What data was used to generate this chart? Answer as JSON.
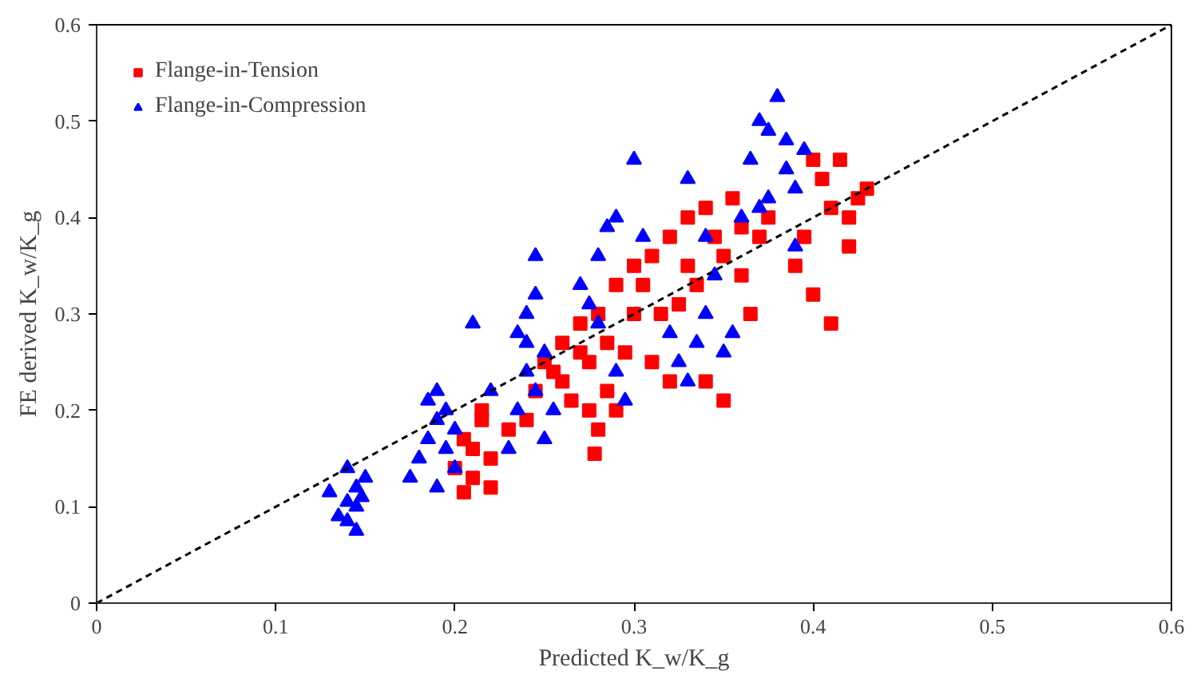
{
  "chart_data": {
    "type": "scatter",
    "xlabel": "Predicted K_w/K_g",
    "ylabel": "FE derived K_w/K_g",
    "xlim": [
      0,
      0.6
    ],
    "ylim": [
      0,
      0.6
    ],
    "xticks": [
      0,
      0.1,
      0.2,
      0.3,
      0.4,
      0.5,
      0.6
    ],
    "yticks": [
      0,
      0.1,
      0.2,
      0.3,
      0.4,
      0.5,
      0.6
    ],
    "grid": false,
    "legend": "top left",
    "series": [
      {
        "name": "Flange-in-Tension",
        "color": "#ff0000",
        "marker": "square",
        "x": [
          0.205,
          0.21,
          0.21,
          0.215,
          0.205,
          0.22,
          0.22,
          0.215,
          0.2,
          0.23,
          0.24,
          0.245,
          0.25,
          0.255,
          0.26,
          0.26,
          0.265,
          0.27,
          0.27,
          0.275,
          0.275,
          0.278,
          0.28,
          0.28,
          0.285,
          0.285,
          0.29,
          0.29,
          0.295,
          0.3,
          0.3,
          0.305,
          0.31,
          0.31,
          0.315,
          0.32,
          0.32,
          0.325,
          0.33,
          0.33,
          0.335,
          0.34,
          0.34,
          0.345,
          0.35,
          0.35,
          0.355,
          0.36,
          0.36,
          0.365,
          0.37,
          0.375,
          0.39,
          0.4,
          0.41,
          0.405,
          0.41,
          0.415,
          0.42,
          0.425,
          0.42,
          0.43,
          0.4,
          0.395
        ],
        "values": [
          0.115,
          0.13,
          0.16,
          0.19,
          0.17,
          0.12,
          0.15,
          0.2,
          0.14,
          0.18,
          0.19,
          0.22,
          0.25,
          0.24,
          0.23,
          0.27,
          0.21,
          0.26,
          0.29,
          0.25,
          0.2,
          0.155,
          0.18,
          0.3,
          0.22,
          0.27,
          0.33,
          0.2,
          0.26,
          0.3,
          0.35,
          0.33,
          0.36,
          0.25,
          0.3,
          0.38,
          0.23,
          0.31,
          0.4,
          0.35,
          0.33,
          0.41,
          0.23,
          0.38,
          0.21,
          0.36,
          0.42,
          0.34,
          0.39,
          0.3,
          0.38,
          0.4,
          0.35,
          0.32,
          0.29,
          0.44,
          0.41,
          0.46,
          0.4,
          0.42,
          0.37,
          0.43,
          0.46,
          0.38
        ]
      },
      {
        "name": "Flange-in-Compression",
        "color": "#0000ff",
        "marker": "triangle",
        "x": [
          0.135,
          0.14,
          0.14,
          0.145,
          0.145,
          0.145,
          0.148,
          0.14,
          0.13,
          0.15,
          0.18,
          0.185,
          0.19,
          0.19,
          0.19,
          0.195,
          0.195,
          0.2,
          0.2,
          0.185,
          0.175,
          0.21,
          0.22,
          0.23,
          0.235,
          0.24,
          0.24,
          0.24,
          0.245,
          0.245,
          0.25,
          0.25,
          0.255,
          0.235,
          0.245,
          0.27,
          0.275,
          0.28,
          0.285,
          0.29,
          0.29,
          0.295,
          0.3,
          0.28,
          0.305,
          0.32,
          0.325,
          0.33,
          0.335,
          0.34,
          0.345,
          0.35,
          0.355,
          0.33,
          0.34,
          0.36,
          0.365,
          0.37,
          0.375,
          0.38,
          0.385,
          0.385,
          0.39,
          0.375,
          0.39,
          0.37,
          0.395
        ],
        "values": [
          0.09,
          0.085,
          0.14,
          0.075,
          0.1,
          0.12,
          0.11,
          0.105,
          0.115,
          0.13,
          0.15,
          0.17,
          0.12,
          0.19,
          0.22,
          0.16,
          0.2,
          0.18,
          0.14,
          0.21,
          0.13,
          0.29,
          0.22,
          0.16,
          0.2,
          0.24,
          0.27,
          0.3,
          0.22,
          0.36,
          0.26,
          0.17,
          0.2,
          0.28,
          0.32,
          0.33,
          0.31,
          0.36,
          0.39,
          0.4,
          0.24,
          0.21,
          0.46,
          0.29,
          0.38,
          0.28,
          0.25,
          0.23,
          0.27,
          0.3,
          0.34,
          0.26,
          0.28,
          0.44,
          0.38,
          0.4,
          0.46,
          0.5,
          0.49,
          0.525,
          0.48,
          0.45,
          0.43,
          0.42,
          0.37,
          0.41,
          0.47
        ]
      },
      {
        "type": "line",
        "color": "#000000",
        "line_style": "dashed",
        "marker": "none",
        "x": [
          0,
          0.6
        ],
        "values": [
          0,
          0.6
        ]
      }
    ]
  }
}
